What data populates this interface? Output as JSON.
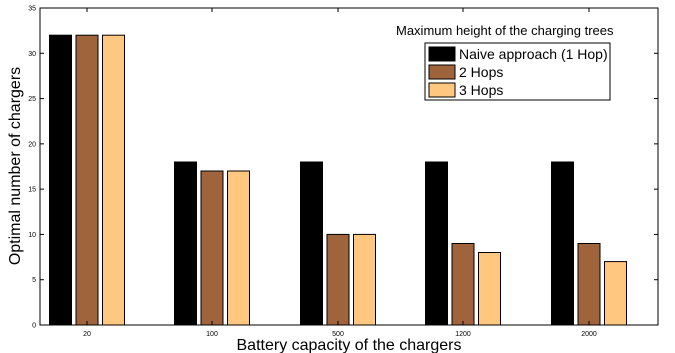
{
  "chart_data": {
    "type": "bar",
    "title": "",
    "xlabel": "Battery capacity of the chargers",
    "ylabel": "Optimal number of chargers",
    "categories": [
      "20",
      "100",
      "500",
      "1200",
      "2000"
    ],
    "ylim": [
      0,
      35
    ],
    "yticks": [
      0,
      5,
      10,
      15,
      20,
      25,
      30,
      35
    ],
    "grid": false,
    "legend": {
      "title": "Maximum height of the charging trees",
      "placement": "top-right"
    },
    "series": [
      {
        "name": "Naive approach (1 Hop)",
        "color": "#000000",
        "values": [
          32,
          18,
          18,
          18,
          18
        ]
      },
      {
        "name": "2 Hops",
        "color": "#A0643C",
        "values": [
          32,
          17,
          10,
          9,
          9
        ]
      },
      {
        "name": "3 Hops",
        "color": "#FFC77F",
        "values": [
          32,
          17,
          10,
          8,
          7
        ]
      }
    ]
  }
}
